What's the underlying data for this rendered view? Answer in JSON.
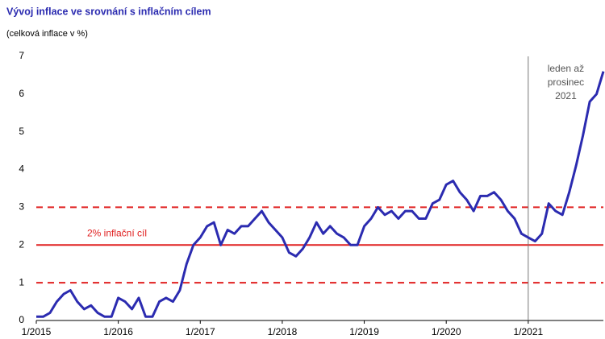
{
  "chart_data": {
    "type": "line",
    "title": "Vývoj inflace ve srovnání s inflačním cílem",
    "subtitle": "(celková inflace v %)",
    "categories": [
      "1/2015",
      null,
      null,
      null,
      null,
      null,
      null,
      null,
      null,
      null,
      null,
      null,
      "1/2016",
      null,
      null,
      null,
      null,
      null,
      null,
      null,
      null,
      null,
      null,
      null,
      "1/2017",
      null,
      null,
      null,
      null,
      null,
      null,
      null,
      null,
      null,
      null,
      null,
      "1/2018",
      null,
      null,
      null,
      null,
      null,
      null,
      null,
      null,
      null,
      null,
      null,
      "1/2019",
      null,
      null,
      null,
      null,
      null,
      null,
      null,
      null,
      null,
      null,
      null,
      "1/2020",
      null,
      null,
      null,
      null,
      null,
      null,
      null,
      null,
      null,
      null,
      null,
      "1/2021",
      null,
      null,
      null,
      null,
      null,
      null,
      null,
      null,
      null,
      null,
      null
    ],
    "series": [
      {
        "name": "celková inflace",
        "color": "#2b2bb0",
        "values": [
          0.1,
          0.1,
          0.2,
          0.5,
          0.7,
          0.8,
          0.5,
          0.3,
          0.4,
          0.2,
          0.1,
          0.1,
          0.6,
          0.5,
          0.3,
          0.6,
          0.1,
          0.1,
          0.5,
          0.6,
          0.5,
          0.8,
          1.5,
          2.0,
          2.2,
          2.5,
          2.6,
          2.0,
          2.4,
          2.3,
          2.5,
          2.5,
          2.7,
          2.9,
          2.6,
          2.4,
          2.2,
          1.8,
          1.7,
          1.9,
          2.2,
          2.6,
          2.3,
          2.5,
          2.3,
          2.2,
          2.0,
          2.0,
          2.5,
          2.7,
          3.0,
          2.8,
          2.9,
          2.7,
          2.9,
          2.9,
          2.7,
          2.7,
          3.1,
          3.2,
          3.6,
          3.7,
          3.4,
          3.2,
          2.9,
          3.3,
          3.3,
          3.4,
          3.2,
          2.9,
          2.7,
          2.3,
          2.2,
          2.1,
          2.3,
          3.1,
          2.9,
          2.8,
          3.4,
          4.1,
          4.9,
          5.8,
          6.0,
          6.6
        ]
      }
    ],
    "target": 2,
    "tolerance_band": [
      1,
      3
    ],
    "target_color": "#e02020",
    "target_label": "2% inflační cíl",
    "period_label": [
      "leden až",
      "prosinec",
      "2021"
    ],
    "ylim": [
      0,
      7
    ],
    "yticks": [
      0,
      1,
      2,
      3,
      4,
      5,
      6,
      7
    ],
    "grid": false
  }
}
